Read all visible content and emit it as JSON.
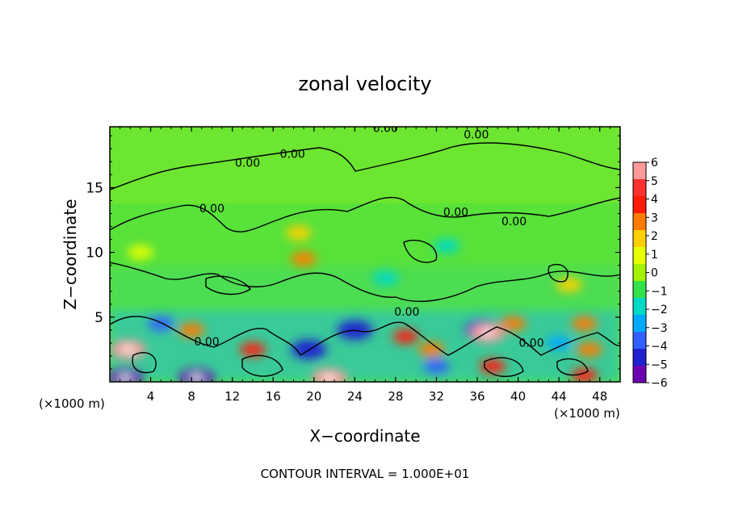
{
  "chart_data": {
    "type": "heatmap",
    "title": "zonal velocity",
    "xlabel": "X−coordinate",
    "ylabel": "Z−coordinate",
    "x_unit_left": "(×1000 m)",
    "x_unit_right": "(×1000 m)",
    "footer": "CONTOUR INTERVAL = 1.000E+01",
    "xlim": [
      0,
      50
    ],
    "ylim": [
      0,
      19.7
    ],
    "x_ticks": [
      4,
      8,
      12,
      16,
      20,
      24,
      28,
      32,
      36,
      40,
      44,
      48
    ],
    "y_ticks": [
      5,
      10,
      15
    ],
    "colorbar": {
      "ticks": [
        6,
        5,
        4,
        3,
        2,
        1,
        0,
        -1,
        -2,
        -3,
        -4,
        -5,
        -6
      ],
      "tick_labels": [
        "6",
        "5",
        "4",
        "3",
        "2",
        "1",
        "0",
        "−1",
        "−2",
        "−3",
        "−4",
        "−5",
        "−6"
      ],
      "colors": [
        "#ff9a9a",
        "#ff3030",
        "#ff1a0a",
        "#ff7a00",
        "#ffd000",
        "#e8ff00",
        "#a6f000",
        "#33e24a",
        "#00d9c5",
        "#00aaff",
        "#3060ff",
        "#2020d0",
        "#6a00b0"
      ]
    },
    "contour_label": "0.00",
    "contour_label_positions": [
      {
        "x": 27,
        "y": 19.3
      },
      {
        "x": 17.9,
        "y": 17.3
      },
      {
        "x": 35.9,
        "y": 18.8
      },
      {
        "x": 13.5,
        "y": 16.6
      },
      {
        "x": 10,
        "y": 13.1
      },
      {
        "x": 33.9,
        "y": 12.8
      },
      {
        "x": 39.6,
        "y": 12.1
      },
      {
        "x": 29.1,
        "y": 5.1
      },
      {
        "x": 9.5,
        "y": 2.8
      },
      {
        "x": 41.3,
        "y": 2.7
      }
    ],
    "field_features": [
      {
        "x": 1.8,
        "z": 2.5,
        "value": 6
      },
      {
        "x": 1.5,
        "z": 0.3,
        "value": -6
      },
      {
        "x": 8.0,
        "z": 4.0,
        "value": 3
      },
      {
        "x": 8.5,
        "z": 0.3,
        "value": -6
      },
      {
        "x": 5.0,
        "z": 4.5,
        "value": -4
      },
      {
        "x": 14.0,
        "z": 2.5,
        "value": 4
      },
      {
        "x": 19.5,
        "z": 2.5,
        "value": -5
      },
      {
        "x": 24.0,
        "z": 4.0,
        "value": -5
      },
      {
        "x": 21.5,
        "z": 0.3,
        "value": 6
      },
      {
        "x": 29.0,
        "z": 3.5,
        "value": 4
      },
      {
        "x": 31.5,
        "z": 2.5,
        "value": 3
      },
      {
        "x": 32.0,
        "z": 1.2,
        "value": -4
      },
      {
        "x": 36.5,
        "z": 4.0,
        "value": -5
      },
      {
        "x": 37.0,
        "z": 3.8,
        "value": 6
      },
      {
        "x": 37.5,
        "z": 1.2,
        "value": 4
      },
      {
        "x": 39.5,
        "z": 4.5,
        "value": 3
      },
      {
        "x": 44.0,
        "z": 3.0,
        "value": -3
      },
      {
        "x": 46.5,
        "z": 4.5,
        "value": 3
      },
      {
        "x": 47.0,
        "z": 2.5,
        "value": 3
      },
      {
        "x": 46.5,
        "z": 0.5,
        "value": 4
      },
      {
        "x": 19.0,
        "z": 9.5,
        "value": 3
      },
      {
        "x": 18.5,
        "z": 11.5,
        "value": 2
      },
      {
        "x": 27.0,
        "z": 8.0,
        "value": -2
      },
      {
        "x": 33.0,
        "z": 10.5,
        "value": -2
      },
      {
        "x": 45.0,
        "z": 7.5,
        "value": 2
      },
      {
        "x": 3.0,
        "z": 10.0,
        "value": 1
      }
    ]
  }
}
